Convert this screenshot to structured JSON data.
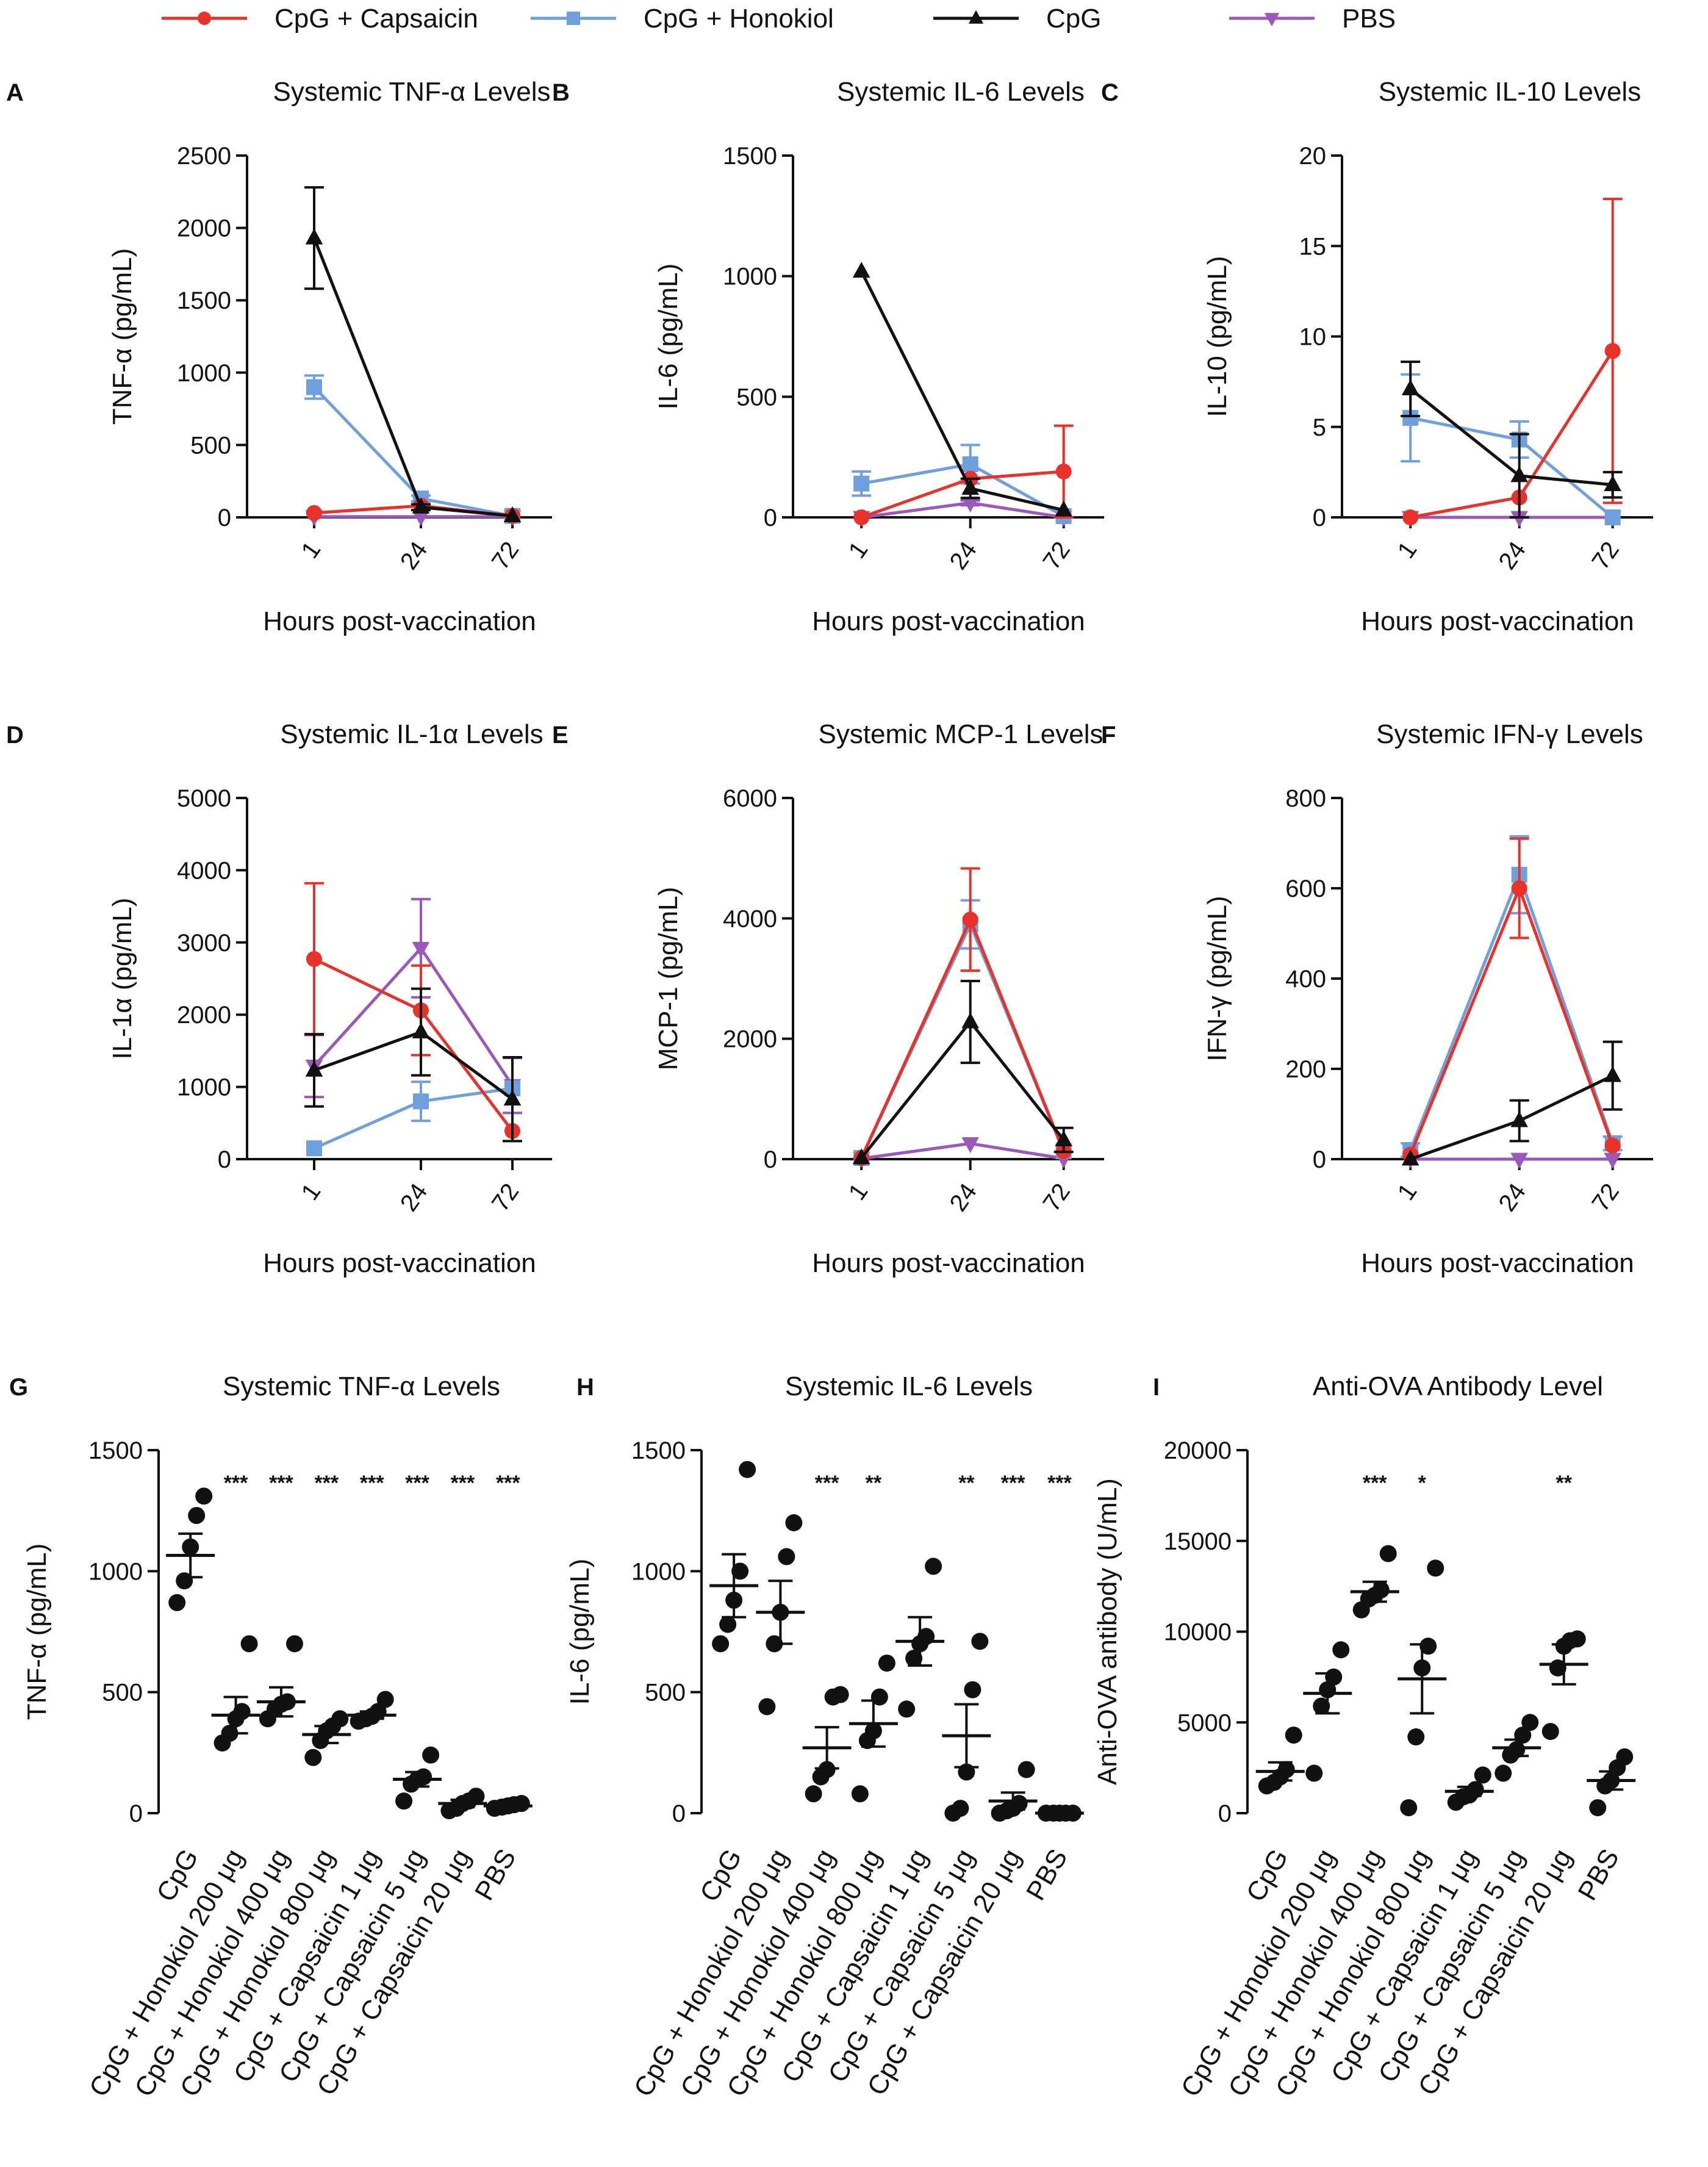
{
  "legend": [
    {
      "label": "CpG + Capsaicin",
      "color": "#e8312a",
      "marker": "circle"
    },
    {
      "label": "CpG + Honokiol",
      "color": "#6f9fdc",
      "marker": "square"
    },
    {
      "label": "CpG",
      "color": "#111111",
      "marker": "triangle-up"
    },
    {
      "label": "PBS",
      "color": "#9a58b9",
      "marker": "triangle-down"
    }
  ],
  "chart_data": [
    {
      "letter": "A",
      "type": "line",
      "title": "Systemic TNF-α Levels",
      "xlabel": "Hours post-vaccination",
      "ylabel": "TNF-α (pg/mL)",
      "categories": [
        "1",
        "24",
        "72"
      ],
      "ylim": [
        0,
        2500
      ],
      "yticks": [
        0,
        500,
        1000,
        1500,
        2000,
        2500
      ],
      "series": [
        {
          "name": "CpG + Capsaicin",
          "values": [
            30,
            80,
            10
          ],
          "err": [
            0,
            0,
            0
          ]
        },
        {
          "name": "CpG + Honokiol",
          "values": [
            900,
            130,
            10
          ],
          "err": [
            80,
            20,
            0
          ]
        },
        {
          "name": "CpG",
          "values": [
            1930,
            70,
            10
          ],
          "err": [
            350,
            20,
            0
          ]
        },
        {
          "name": "PBS",
          "values": [
            5,
            5,
            5
          ],
          "err": [
            0,
            0,
            0
          ]
        }
      ]
    },
    {
      "letter": "B",
      "type": "line",
      "title": "Systemic IL-6 Levels",
      "xlabel": "Hours post-vaccination",
      "ylabel": "IL-6 (pg/mL)",
      "categories": [
        "1",
        "24",
        "72"
      ],
      "ylim": [
        0,
        1500
      ],
      "yticks": [
        0,
        500,
        1000,
        1500
      ],
      "series": [
        {
          "name": "CpG + Capsaicin",
          "values": [
            0,
            160,
            190
          ],
          "err": [
            0,
            0,
            190
          ]
        },
        {
          "name": "CpG + Honokiol",
          "values": [
            140,
            220,
            5
          ],
          "err": [
            50,
            80,
            0
          ]
        },
        {
          "name": "CpG",
          "values": [
            1020,
            120,
            30
          ],
          "err": [
            0,
            40,
            0
          ]
        },
        {
          "name": "PBS",
          "values": [
            0,
            60,
            0
          ],
          "err": [
            0,
            10,
            0
          ]
        }
      ]
    },
    {
      "letter": "C",
      "type": "line",
      "title": "Systemic IL-10 Levels",
      "xlabel": "Hours post-vaccination",
      "ylabel": "IL-10 (pg/mL)",
      "categories": [
        "1",
        "24",
        "72"
      ],
      "ylim": [
        0,
        20
      ],
      "yticks": [
        0,
        5,
        10,
        15,
        20
      ],
      "series": [
        {
          "name": "CpG + Capsaicin",
          "values": [
            0,
            1.1,
            9.2
          ],
          "err": [
            0,
            0,
            8.4
          ]
        },
        {
          "name": "CpG + Honokiol",
          "values": [
            5.5,
            4.3,
            0
          ],
          "err": [
            2.4,
            1.0,
            0
          ]
        },
        {
          "name": "CpG",
          "values": [
            7.1,
            2.3,
            1.8
          ],
          "err": [
            1.5,
            2.3,
            0.7
          ]
        },
        {
          "name": "PBS",
          "values": [
            0,
            0,
            0
          ],
          "err": [
            0,
            0,
            0
          ]
        }
      ]
    },
    {
      "letter": "D",
      "type": "line",
      "title": "Systemic IL-1α Levels",
      "xlabel": "Hours post-vaccination",
      "ylabel": "IL-1α (pg/mL)",
      "categories": [
        "1",
        "24",
        "72"
      ],
      "ylim": [
        0,
        5000
      ],
      "yticks": [
        0,
        1000,
        2000,
        3000,
        4000,
        5000
      ],
      "series": [
        {
          "name": "CpG + Capsaicin",
          "values": [
            2770,
            2060,
            390
          ],
          "err": [
            1050,
            620,
            0
          ]
        },
        {
          "name": "CpG + Honokiol",
          "values": [
            150,
            800,
            980
          ],
          "err": [
            0,
            270,
            0
          ]
        },
        {
          "name": "CpG",
          "values": [
            1230,
            1760,
            830
          ],
          "err": [
            500,
            600,
            580
          ]
        },
        {
          "name": "PBS",
          "values": [
            1290,
            2920,
            1020
          ],
          "err": [
            430,
            680,
            380
          ]
        }
      ]
    },
    {
      "letter": "E",
      "type": "line",
      "title": "Systemic MCP-1 Levels",
      "xlabel": "Hours post-vaccination",
      "ylabel": "MCP-1 (pg/mL)",
      "categories": [
        "1",
        "24",
        "72"
      ],
      "ylim": [
        0,
        6000
      ],
      "yticks": [
        0,
        2000,
        4000,
        6000
      ],
      "series": [
        {
          "name": "CpG + Capsaicin",
          "values": [
            20,
            3980,
            130
          ],
          "err": [
            0,
            850,
            0
          ]
        },
        {
          "name": "CpG + Honokiol",
          "values": [
            20,
            3900,
            130
          ],
          "err": [
            0,
            400,
            0
          ]
        },
        {
          "name": "CpG",
          "values": [
            20,
            2280,
            320
          ],
          "err": [
            0,
            680,
            200
          ]
        },
        {
          "name": "PBS",
          "values": [
            10,
            260,
            10
          ],
          "err": [
            0,
            0,
            0
          ]
        }
      ]
    },
    {
      "letter": "F",
      "type": "line",
      "title": "Systemic IFN-γ Levels",
      "xlabel": "Hours post-vaccination",
      "ylabel": "IFN-γ (pg/mL)",
      "categories": [
        "1",
        "24",
        "72"
      ],
      "ylim": [
        0,
        800
      ],
      "yticks": [
        0,
        200,
        400,
        600,
        800
      ],
      "series": [
        {
          "name": "CpG + Capsaicin",
          "values": [
            10,
            600,
            30
          ],
          "err": [
            0,
            110,
            0
          ]
        },
        {
          "name": "CpG + Honokiol",
          "values": [
            20,
            630,
            35
          ],
          "err": [
            15,
            85,
            15
          ]
        },
        {
          "name": "CpG",
          "values": [
            0,
            85,
            185
          ],
          "err": [
            0,
            45,
            75
          ]
        },
        {
          "name": "PBS",
          "values": [
            0,
            0,
            0
          ],
          "err": [
            0,
            0,
            0
          ]
        }
      ]
    },
    {
      "letter": "G",
      "type": "scatter",
      "title": "Systemic TNF-α Levels",
      "ylabel": "TNF-α (pg/mL)",
      "ylim": [
        0,
        1500
      ],
      "yticks": [
        0,
        500,
        1000,
        1500
      ],
      "categories": [
        "CpG",
        "CpG + Honokiol 200 μg",
        "CpG + Honokiol 400 μg",
        "CpG + Honokiol 800 μg",
        "CpG + Capsaicin 1 μg",
        "CpG + Capsaicin 5 μg",
        "CpG + Capsaicin 20 μg",
        "PBS"
      ],
      "significance": [
        "",
        "***",
        "***",
        "***",
        "***",
        "***",
        "***",
        "***"
      ],
      "groups": [
        {
          "points": [
            870,
            960,
            1100,
            1230,
            1310
          ],
          "mean": 1065,
          "sem": 90
        },
        {
          "points": [
            290,
            330,
            390,
            420,
            700
          ],
          "mean": 405,
          "sem": 75
        },
        {
          "points": [
            390,
            430,
            450,
            460,
            700
          ],
          "mean": 460,
          "sem": 60
        },
        {
          "points": [
            230,
            300,
            340,
            360,
            390
          ],
          "mean": 325,
          "sem": 35
        },
        {
          "points": [
            380,
            390,
            400,
            420,
            470
          ],
          "mean": 405,
          "sem": 15
        },
        {
          "points": [
            50,
            120,
            140,
            150,
            240
          ],
          "mean": 140,
          "sem": 30
        },
        {
          "points": [
            10,
            20,
            40,
            50,
            70
          ],
          "mean": 40,
          "sem": 15
        },
        {
          "points": [
            20,
            25,
            30,
            35,
            40
          ],
          "mean": 30,
          "sem": 5
        }
      ]
    },
    {
      "letter": "H",
      "type": "scatter",
      "title": "Systemic IL-6 Levels",
      "ylabel": "IL-6 (pg/mL)",
      "ylim": [
        0,
        1500
      ],
      "yticks": [
        0,
        500,
        1000,
        1500
      ],
      "categories": [
        "CpG",
        "CpG + Honokiol 200 μg",
        "CpG + Honokiol 400 μg",
        "CpG + Honokiol 800 μg",
        "CpG + Capsaicin 1 μg",
        "CpG + Capsaicin 5 μg",
        "CpG + Capsaicin 20 μg",
        "PBS"
      ],
      "significance": [
        "",
        "",
        "***",
        "**",
        "",
        "**",
        "***",
        "***"
      ],
      "groups": [
        {
          "points": [
            700,
            780,
            880,
            1000,
            1420
          ],
          "mean": 940,
          "sem": 130
        },
        {
          "points": [
            440,
            700,
            830,
            1060,
            1200
          ],
          "mean": 830,
          "sem": 130
        },
        {
          "points": [
            80,
            150,
            180,
            480,
            490
          ],
          "mean": 270,
          "sem": 85
        },
        {
          "points": [
            80,
            300,
            340,
            480,
            620
          ],
          "mean": 370,
          "sem": 95
        },
        {
          "points": [
            430,
            640,
            700,
            730,
            1020
          ],
          "mean": 710,
          "sem": 100
        },
        {
          "points": [
            0,
            20,
            170,
            510,
            710
          ],
          "mean": 320,
          "sem": 130
        },
        {
          "points": [
            0,
            10,
            20,
            40,
            180
          ],
          "mean": 50,
          "sem": 35
        },
        {
          "points": [
            0,
            0,
            0,
            0,
            0
          ],
          "mean": 0,
          "sem": 0
        }
      ]
    },
    {
      "letter": "I",
      "type": "scatter",
      "title": "Anti-OVA Antibody Level",
      "ylabel": "Anti-OVA antibody (U/mL)",
      "ylim": [
        0,
        20000
      ],
      "yticks": [
        0,
        5000,
        10000,
        15000,
        20000
      ],
      "categories": [
        "CpG",
        "CpG + Honokiol 200 μg",
        "CpG + Honokiol 400 μg",
        "CpG + Honokiol 800 μg",
        "CpG + Capsaicin 1 μg",
        "CpG + Capsaicin 5 μg",
        "CpG + Capsaicin 20 μg",
        "PBS"
      ],
      "significance": [
        "",
        "",
        "***",
        "*",
        "",
        "",
        "**",
        ""
      ],
      "groups": [
        {
          "points": [
            1500,
            1700,
            2000,
            2400,
            4300
          ],
          "mean": 2300,
          "sem": 500
        },
        {
          "points": [
            2200,
            5900,
            6800,
            7500,
            9000
          ],
          "mean": 6600,
          "sem": 1100
        },
        {
          "points": [
            11200,
            11800,
            12000,
            12300,
            14300
          ],
          "mean": 12200,
          "sem": 550
        },
        {
          "points": [
            300,
            4200,
            8000,
            9200,
            13500
          ],
          "mean": 7400,
          "sem": 1900
        },
        {
          "points": [
            600,
            900,
            1000,
            1300,
            2100
          ],
          "mean": 1200,
          "sem": 250
        },
        {
          "points": [
            2200,
            3200,
            3500,
            4300,
            5000
          ],
          "mean": 3600,
          "sem": 450
        },
        {
          "points": [
            4500,
            8000,
            9200,
            9500,
            9600
          ],
          "mean": 8200,
          "sem": 1100
        },
        {
          "points": [
            300,
            1500,
            1800,
            2500,
            3100
          ],
          "mean": 1800,
          "sem": 500
        }
      ]
    }
  ]
}
